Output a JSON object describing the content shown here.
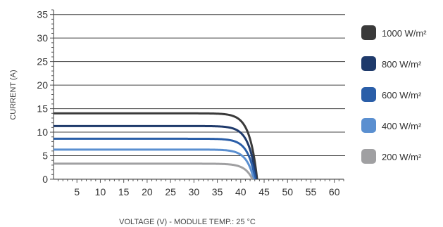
{
  "chart_data": {
    "type": "line",
    "xlabel": "VOLTAGE (V) - MODULE TEMP.: 25 °C",
    "ylabel": "CURRENT (A)",
    "xlim": [
      0,
      62
    ],
    "ylim": [
      0,
      36
    ],
    "x_ticks": [
      5,
      10,
      15,
      20,
      25,
      30,
      35,
      40,
      45,
      50,
      55,
      60
    ],
    "y_ticks": [
      0,
      5,
      10,
      15,
      20,
      25,
      30,
      35
    ],
    "grid": "horizontal",
    "legend_position": "right",
    "series": [
      {
        "name": "1000 W/m²",
        "color": "#3a3a3a",
        "isc": 14.0,
        "voc": 43.5
      },
      {
        "name": "800 W/m²",
        "color": "#1f3a6b",
        "isc": 11.3,
        "voc": 43.3
      },
      {
        "name": "600 W/m²",
        "color": "#2a5ea8",
        "isc": 8.6,
        "voc": 43.1
      },
      {
        "name": "400 W/m²",
        "color": "#5a8fd0",
        "isc": 6.3,
        "voc": 42.8
      },
      {
        "name": "200 W/m²",
        "color": "#a0a0a2",
        "isc": 3.3,
        "voc": 42.5
      }
    ]
  }
}
